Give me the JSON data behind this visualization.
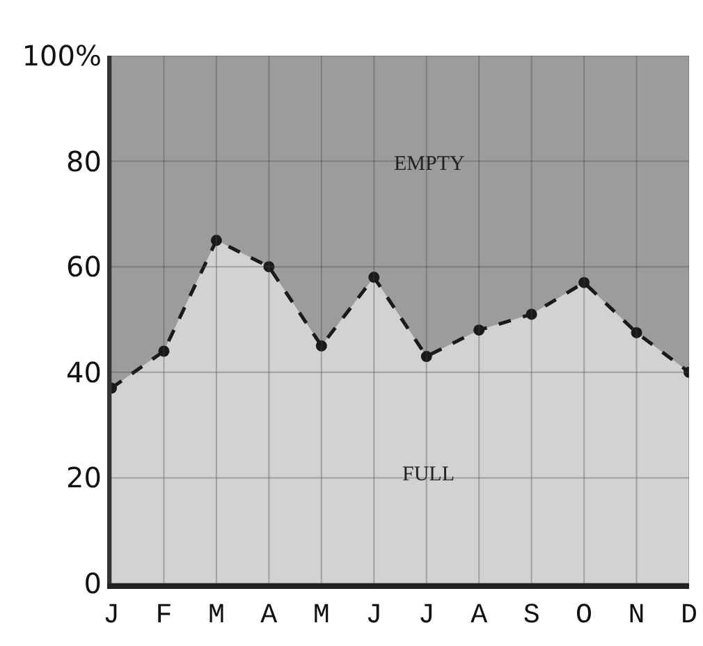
{
  "chart_data": {
    "type": "area",
    "stacked": true,
    "categories": [
      "J",
      "F",
      "M",
      "A",
      "M",
      "J",
      "J",
      "A",
      "S",
      "O",
      "N",
      "D"
    ],
    "series": [
      {
        "name": "FULL",
        "color": "#d2d2d2",
        "values": [
          37,
          44,
          65,
          60,
          45,
          58,
          43,
          48,
          51,
          57,
          47.5,
          40
        ]
      },
      {
        "name": "EMPTY",
        "color": "#9c9c9c",
        "marker": "none",
        "values": [
          63,
          56,
          35,
          40,
          55,
          42,
          57,
          52,
          49,
          43,
          52.5,
          60
        ]
      }
    ],
    "ylim": [
      0,
      100
    ],
    "yticks": [
      0,
      20,
      40,
      60,
      80,
      {
        "value": 100,
        "label": "100%"
      }
    ],
    "grid": true,
    "legend": false,
    "marker": "circle",
    "line_style": "dashed"
  }
}
